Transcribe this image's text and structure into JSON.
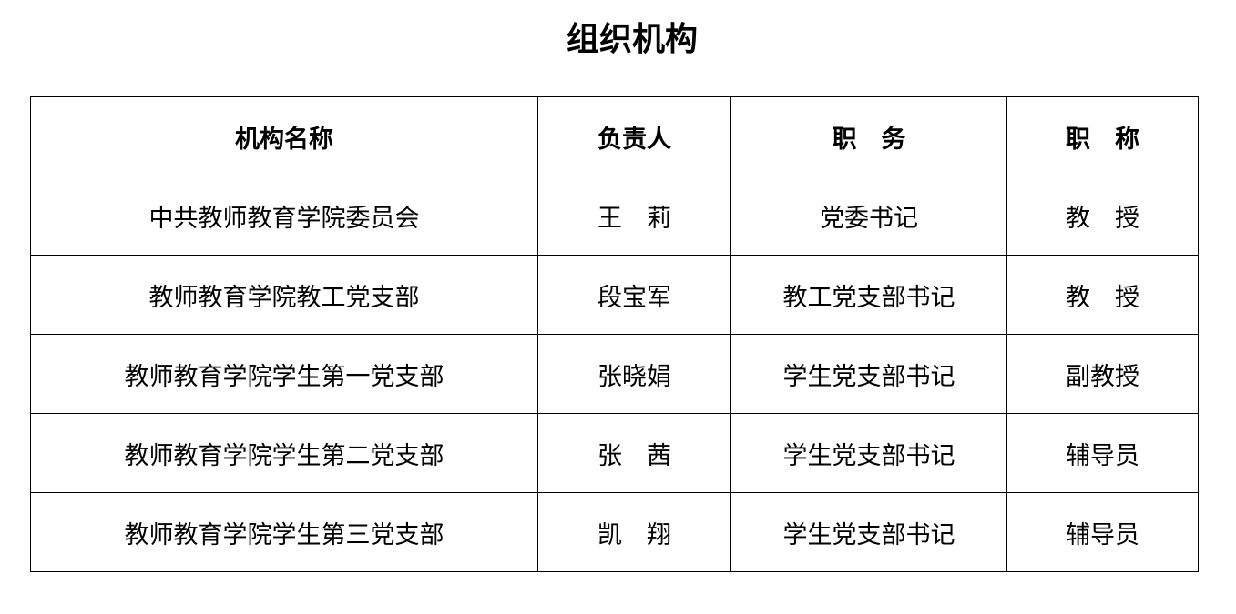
{
  "title": "组织机构",
  "table": {
    "headers": [
      "机构名称",
      "负责人",
      "职　务",
      "职　称"
    ],
    "rows": [
      [
        "中共教师教育学院委员会",
        "王　莉",
        "党委书记",
        "教　授"
      ],
      [
        "教师教育学院教工党支部",
        "段宝军",
        "教工党支部书记",
        "教　授"
      ],
      [
        "教师教育学院学生第一党支部",
        "张晓娟",
        "学生党支部书记",
        "副教授"
      ],
      [
        "教师教育学院学生第二党支部",
        "张　茜",
        "学生党支部书记",
        "辅导员"
      ],
      [
        "教师教育学院学生第三党支部",
        "凯　翔",
        "学生党支部书记",
        "辅导员"
      ]
    ]
  }
}
